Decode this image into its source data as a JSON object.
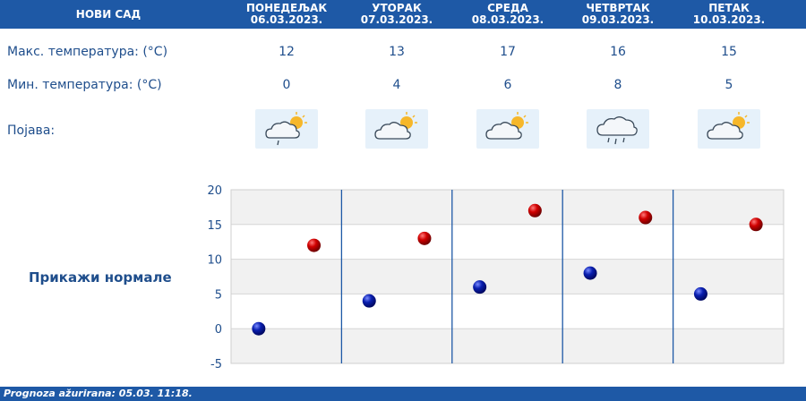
{
  "header": {
    "city": "НОВИ САД",
    "days": [
      {
        "name": "ПОНЕДЕЉАК",
        "date": "06.03.2023."
      },
      {
        "name": "УТОРАК",
        "date": "07.03.2023."
      },
      {
        "name": "СРЕДА",
        "date": "08.03.2023."
      },
      {
        "name": "ЧЕТВРТАК",
        "date": "09.03.2023."
      },
      {
        "name": "ПЕТАК",
        "date": "10.03.2023."
      }
    ]
  },
  "rows": {
    "max_label": "Макс. температура: (°C)",
    "min_label": "Мин. температура: (°C)",
    "weather_label": "Појава:",
    "max_values": [
      "12",
      "13",
      "17",
      "16",
      "15"
    ],
    "min_values": [
      "0",
      "4",
      "6",
      "8",
      "5"
    ],
    "weather_icons": [
      "partly-cloudy-light-rain-icon",
      "partly-cloudy-icon",
      "partly-cloudy-icon",
      "cloud-rain-icon",
      "partly-cloudy-icon"
    ]
  },
  "normals_link": "Прикажи нормале",
  "colors": {
    "header_bg": "#1e59a6",
    "text": "#1f4e8c",
    "max_marker": "#cc0000",
    "min_marker": "#0a1fb0"
  },
  "chart_data": {
    "type": "scatter",
    "categories": [
      "06.03.2023.",
      "07.03.2023.",
      "08.03.2023.",
      "09.03.2023.",
      "10.03.2023."
    ],
    "series": [
      {
        "values": [
          0,
          4,
          6,
          8,
          5
        ]
      },
      {
        "values": [
          12,
          13,
          17,
          16,
          15
        ]
      }
    ],
    "ylim": [
      -5,
      20
    ],
    "yticks": [
      "20",
      "15",
      "10",
      "5",
      "0",
      "-5"
    ],
    "grid": true
  },
  "footer": {
    "updated": "Prognoza ažurirana:  05.03. 11:18."
  }
}
